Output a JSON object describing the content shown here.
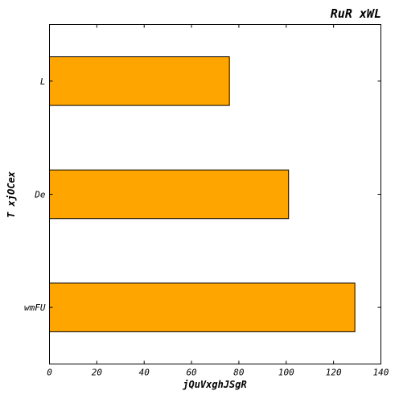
{
  "chart_data": {
    "type": "bar",
    "orientation": "horizontal",
    "title": "RuR xWL",
    "xlabel": "jQuVxghJSgR",
    "ylabel": "T xjOCex",
    "categories": [
      "wmFU",
      "De",
      "L"
    ],
    "values": [
      129,
      101,
      76
    ],
    "xlim": [
      0,
      140
    ],
    "xticks": [
      0,
      20,
      40,
      60,
      80,
      100,
      120,
      140
    ],
    "grid": false,
    "legend": "none",
    "bar_color": "#ffa500",
    "edge_color": "#000000"
  }
}
